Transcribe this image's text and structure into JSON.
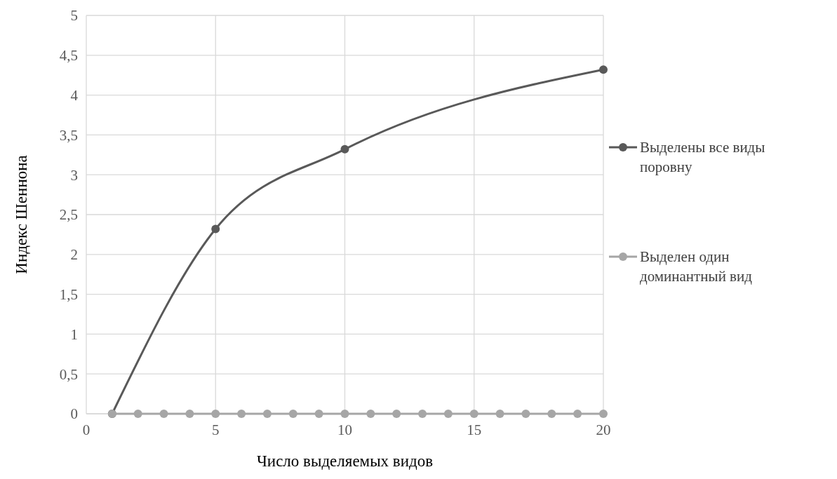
{
  "chart_data": {
    "type": "line",
    "xlabel": "Число выделяемых видов",
    "ylabel": "Индекс Шеннона",
    "xlim": [
      0,
      20
    ],
    "xticks": [
      0,
      5,
      10,
      15,
      20
    ],
    "ylim": [
      0,
      5
    ],
    "yticks": [
      0,
      {
        "value": 0.5,
        "label": "0,5"
      },
      1,
      {
        "value": 1.5,
        "label": "1,5"
      },
      2,
      {
        "value": 2.5,
        "label": "2,5"
      },
      3,
      {
        "value": 3.5,
        "label": "3,5"
      },
      4,
      {
        "value": 4.5,
        "label": "4,5"
      },
      5
    ],
    "grid": true,
    "legend": "right",
    "marker": "circle",
    "line_style": "solid",
    "series": [
      {
        "name": "Выделены все виды поровну",
        "color": "#595959",
        "x": [
          1,
          5,
          10,
          20
        ],
        "values": [
          0,
          2.32,
          3.32,
          4.32
        ]
      },
      {
        "name": "Выделен один доминантный вид",
        "color": "#a6a6a6",
        "x": [
          1,
          2,
          3,
          4,
          5,
          6,
          7,
          8,
          9,
          10,
          11,
          12,
          13,
          14,
          15,
          16,
          17,
          18,
          19,
          20
        ],
        "values": [
          0,
          0,
          0,
          0,
          0,
          0,
          0,
          0,
          0,
          0,
          0,
          0,
          0,
          0,
          0,
          0,
          0,
          0,
          0,
          0
        ]
      }
    ]
  }
}
